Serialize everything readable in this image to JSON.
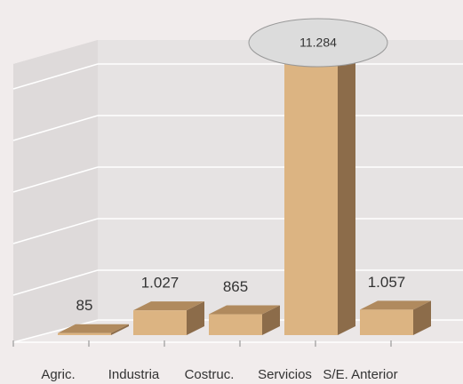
{
  "chart_data": {
    "type": "bar3d",
    "categories": [
      "Agric.",
      "Industria",
      "Costruc.",
      "Servicios",
      "S/E. Anterior"
    ],
    "values": [
      85,
      1027,
      865,
      11284,
      1057
    ],
    "value_labels": [
      "85",
      "1.027",
      "865",
      "11.284",
      "1.057"
    ],
    "color": "#dcb482",
    "ylim": [
      0,
      11800
    ]
  }
}
